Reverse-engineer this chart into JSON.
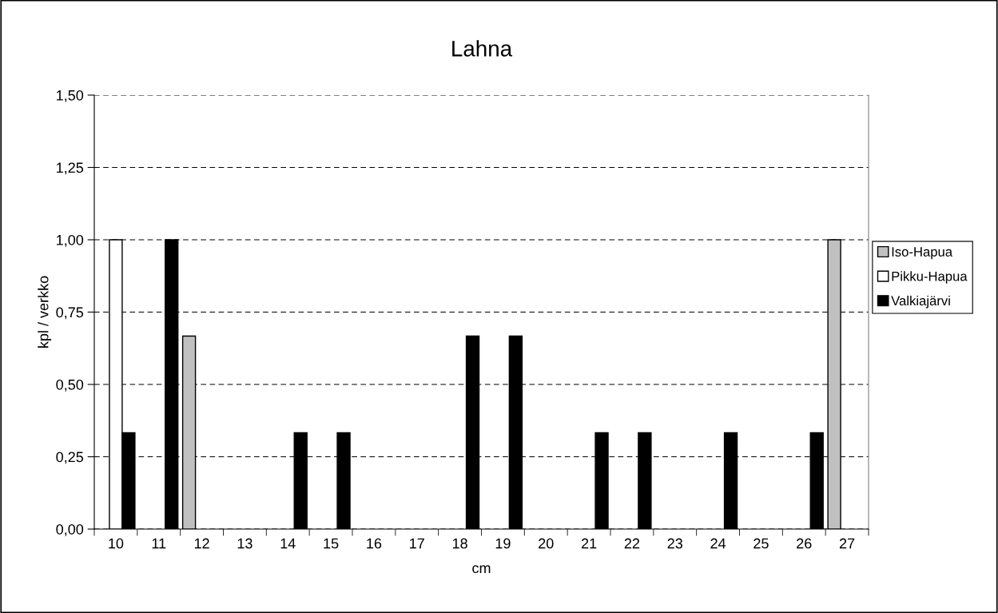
{
  "chart_data": {
    "type": "bar",
    "title": "Lahna",
    "xlabel": "cm",
    "ylabel": "kpl / verkko",
    "categories": [
      "10",
      "11",
      "12",
      "13",
      "14",
      "15",
      "16",
      "17",
      "18",
      "19",
      "20",
      "21",
      "22",
      "23",
      "24",
      "25",
      "26",
      "27"
    ],
    "series": [
      {
        "name": "Iso-Hapua",
        "color": "#c0c0c0",
        "values": [
          null,
          null,
          0.667,
          null,
          null,
          null,
          null,
          null,
          null,
          null,
          null,
          null,
          null,
          null,
          null,
          null,
          null,
          1.0
        ]
      },
      {
        "name": "Pikku-Hapua",
        "color": "#ffffff",
        "values": [
          1.0,
          null,
          null,
          null,
          null,
          null,
          null,
          null,
          null,
          null,
          null,
          null,
          null,
          null,
          null,
          null,
          null,
          null
        ]
      },
      {
        "name": "Valkiajärvi",
        "color": "#000000",
        "values": [
          0.333,
          1.0,
          null,
          null,
          0.333,
          0.333,
          null,
          null,
          0.667,
          0.667,
          null,
          0.333,
          0.333,
          null,
          0.333,
          null,
          0.333,
          null
        ]
      }
    ],
    "ylim": [
      0,
      1.5
    ],
    "yticks": [
      {
        "value": 0,
        "label": "0,00"
      },
      {
        "value": 0.25,
        "label": "0,25"
      },
      {
        "value": 0.5,
        "label": "0,50"
      },
      {
        "value": 0.75,
        "label": "0,75"
      },
      {
        "value": 1.0,
        "label": "1,00"
      },
      {
        "value": 1.25,
        "label": "1,25"
      },
      {
        "value": 1.5,
        "label": "1,50"
      }
    ],
    "grid": "y",
    "legend": "right"
  }
}
